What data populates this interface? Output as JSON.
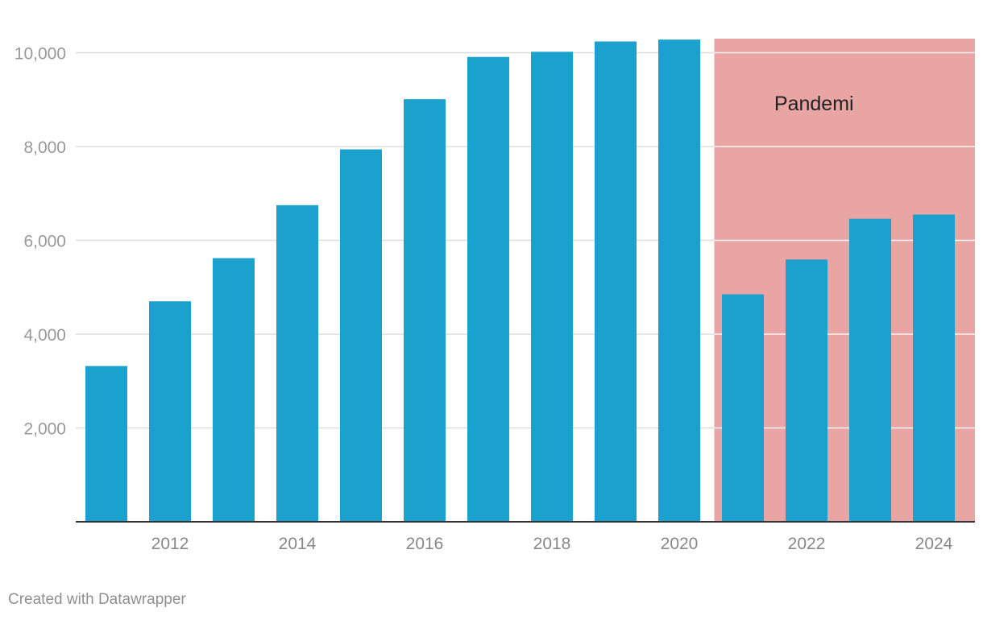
{
  "chart_data": {
    "type": "bar",
    "title": "",
    "xlabel": "",
    "ylabel": "",
    "categories": [
      "2011",
      "2012",
      "2013",
      "2014",
      "2015",
      "2016",
      "2017",
      "2018",
      "2019",
      "2020",
      "2021",
      "2022",
      "2023",
      "2024"
    ],
    "x_tick_labels": [
      "2012",
      "2014",
      "2016",
      "2018",
      "2020",
      "2022",
      "2024"
    ],
    "values": [
      3320,
      4700,
      5620,
      6750,
      7940,
      9010,
      9910,
      10020,
      10240,
      10280,
      4850,
      5590,
      6460,
      6550
    ],
    "ylim": [
      0,
      10300
    ],
    "y_ticks": [
      2000,
      4000,
      6000,
      8000,
      10000
    ],
    "y_tick_labels": [
      "2,000",
      "4,000",
      "6,000",
      "8,000",
      "10,000"
    ],
    "grid": true,
    "annotation": {
      "label": "Pandemi",
      "from": "2021",
      "to": "2024"
    },
    "colors": {
      "bar": "#1aa1cd",
      "highlight": "#e8a5a3",
      "grid": "#dddddd",
      "axis": "#333333",
      "tick_text": "#999999"
    }
  },
  "footer": {
    "credit": "Created with Datawrapper"
  }
}
